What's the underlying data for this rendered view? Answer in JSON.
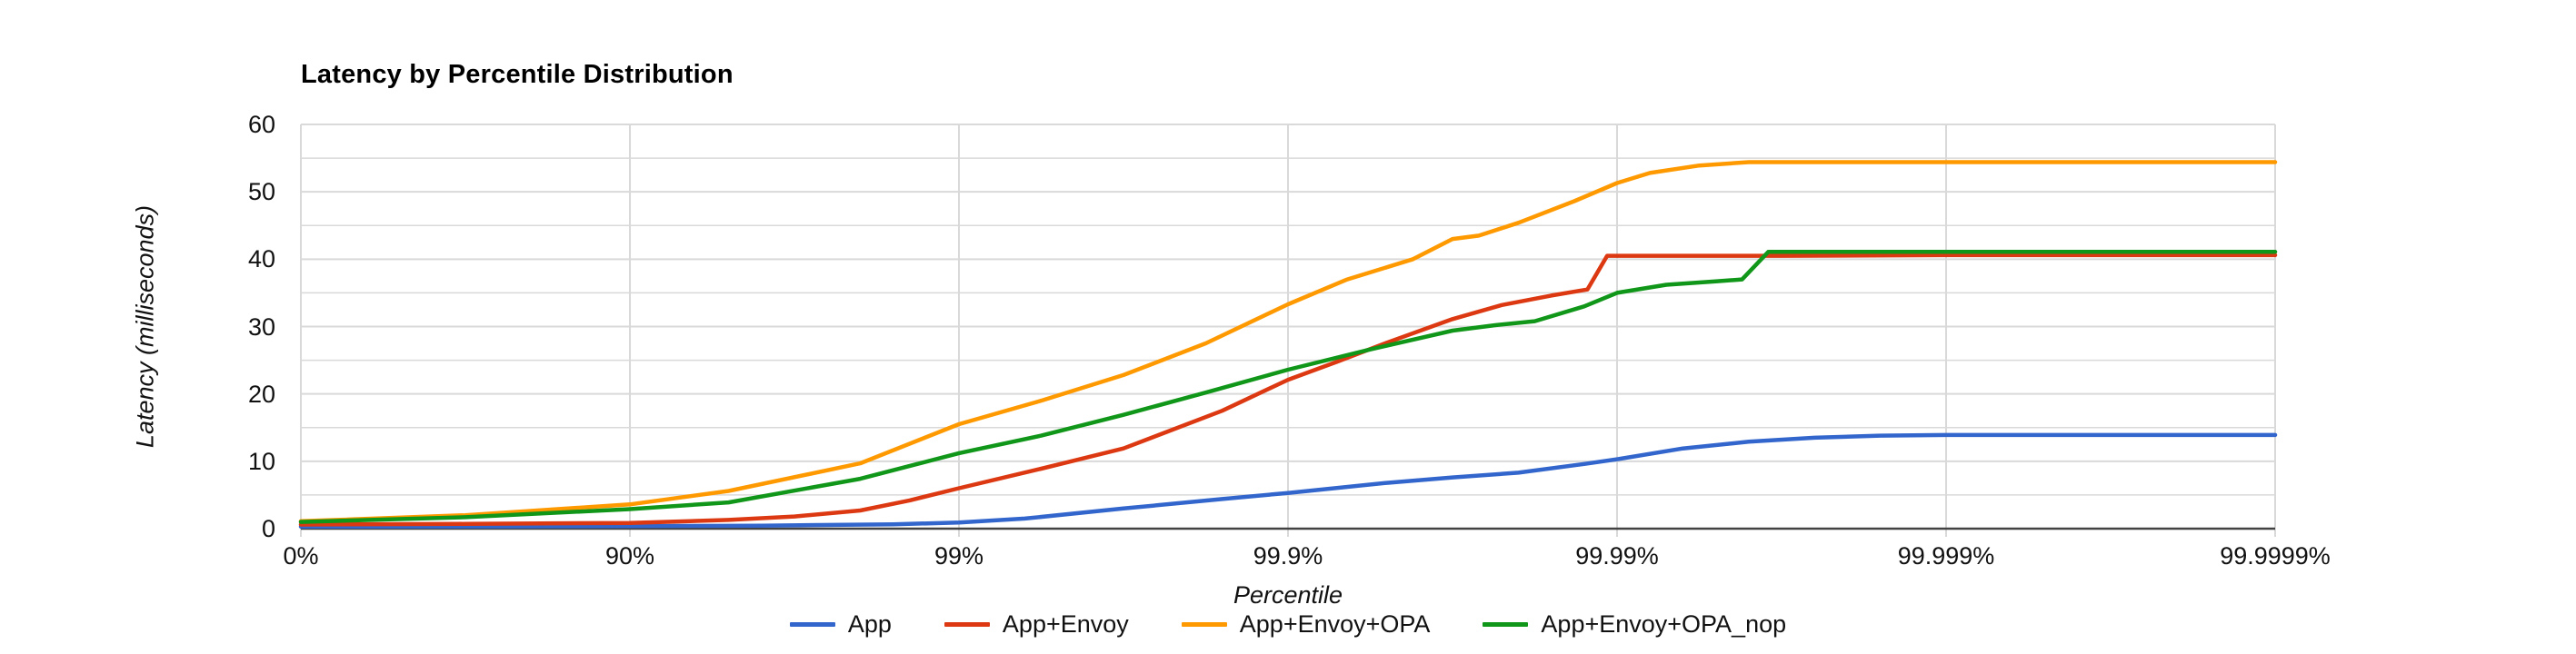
{
  "page_background": "#ffffff",
  "styles": {
    "grid_color": "#d9d9d9",
    "axis_line_color": "#424242",
    "text_color": "#111111",
    "title_color": "#000000"
  },
  "chart_data": {
    "type": "line",
    "title": "Latency by Percentile Distribution",
    "xlabel": "Percentile",
    "ylabel": "Latency (milliseconds)",
    "x_scale": "percentile-log (axis position = number of nines, -log10(1-p))",
    "x_tick_labels": [
      "0%",
      "90%",
      "99%",
      "99.9%",
      "99.99%",
      "99.999%",
      "99.9999%"
    ],
    "x_tick_positions": [
      0,
      1,
      2,
      3,
      4,
      5,
      6
    ],
    "xlim": [
      0,
      6
    ],
    "y_ticks": [
      0,
      10,
      20,
      30,
      40,
      50,
      60
    ],
    "y_minor_ticks": [
      5,
      15,
      25,
      35,
      45,
      55
    ],
    "ylim": [
      0,
      60
    ],
    "grid": true,
    "legend_position": "bottom",
    "series": [
      {
        "name": "App",
        "color": "#3366CC",
        "points": [
          [
            0,
            0.3
          ],
          [
            0.6,
            0.32
          ],
          [
            1,
            0.36
          ],
          [
            1.4,
            0.45
          ],
          [
            1.8,
            0.65
          ],
          [
            2,
            0.9
          ],
          [
            2.2,
            1.5
          ],
          [
            2.5,
            3.0
          ],
          [
            2.8,
            4.4
          ],
          [
            3,
            5.3
          ],
          [
            3.3,
            6.8
          ],
          [
            3.5,
            7.6
          ],
          [
            3.7,
            8.3
          ],
          [
            3.9,
            9.6
          ],
          [
            4,
            10.3
          ],
          [
            4.2,
            11.9
          ],
          [
            4.4,
            12.9
          ],
          [
            4.6,
            13.5
          ],
          [
            4.8,
            13.8
          ],
          [
            5,
            13.9
          ],
          [
            5.5,
            13.9
          ],
          [
            6,
            13.9
          ]
        ]
      },
      {
        "name": "App+Envoy",
        "color": "#DC3912",
        "points": [
          [
            0,
            0.6
          ],
          [
            0.5,
            0.7
          ],
          [
            1,
            0.85
          ],
          [
            1.3,
            1.3
          ],
          [
            1.5,
            1.8
          ],
          [
            1.7,
            2.7
          ],
          [
            1.85,
            4.2
          ],
          [
            2,
            6.0
          ],
          [
            2.25,
            8.9
          ],
          [
            2.5,
            11.9
          ],
          [
            2.8,
            17.5
          ],
          [
            3,
            22.1
          ],
          [
            3.15,
            24.8
          ],
          [
            3.3,
            27.6
          ],
          [
            3.5,
            31.1
          ],
          [
            3.65,
            33.2
          ],
          [
            3.8,
            34.6
          ],
          [
            3.91,
            35.5
          ],
          [
            3.97,
            40.5
          ],
          [
            4.5,
            40.5
          ],
          [
            5,
            40.6
          ],
          [
            6,
            40.6
          ]
        ]
      },
      {
        "name": "App+Envoy+OPA",
        "color": "#FF9900",
        "points": [
          [
            0,
            1.1
          ],
          [
            0.5,
            2.0
          ],
          [
            1,
            3.6
          ],
          [
            1.3,
            5.6
          ],
          [
            1.7,
            9.7
          ],
          [
            2,
            15.5
          ],
          [
            2.25,
            19.0
          ],
          [
            2.5,
            22.8
          ],
          [
            2.75,
            27.5
          ],
          [
            3,
            33.3
          ],
          [
            3.18,
            37.0
          ],
          [
            3.38,
            40.0
          ],
          [
            3.5,
            43.0
          ],
          [
            3.58,
            43.5
          ],
          [
            3.7,
            45.4
          ],
          [
            3.87,
            48.6
          ],
          [
            4,
            51.3
          ],
          [
            4.1,
            52.8
          ],
          [
            4.25,
            53.9
          ],
          [
            4.4,
            54.4
          ],
          [
            5,
            54.4
          ],
          [
            6,
            54.4
          ]
        ]
      },
      {
        "name": "App+Envoy+OPA_nop",
        "color": "#109618",
        "points": [
          [
            0,
            1.0
          ],
          [
            0.5,
            1.7
          ],
          [
            1,
            2.9
          ],
          [
            1.3,
            3.9
          ],
          [
            1.7,
            7.4
          ],
          [
            2,
            11.2
          ],
          [
            2.25,
            13.8
          ],
          [
            2.5,
            16.9
          ],
          [
            2.75,
            20.2
          ],
          [
            3,
            23.6
          ],
          [
            3.25,
            26.6
          ],
          [
            3.5,
            29.4
          ],
          [
            3.63,
            30.2
          ],
          [
            3.75,
            30.8
          ],
          [
            3.9,
            33.0
          ],
          [
            4,
            35.0
          ],
          [
            4.15,
            36.2
          ],
          [
            4.3,
            36.7
          ],
          [
            4.38,
            37.0
          ],
          [
            4.46,
            41.1
          ],
          [
            5,
            41.1
          ],
          [
            6,
            41.1
          ]
        ]
      }
    ]
  }
}
